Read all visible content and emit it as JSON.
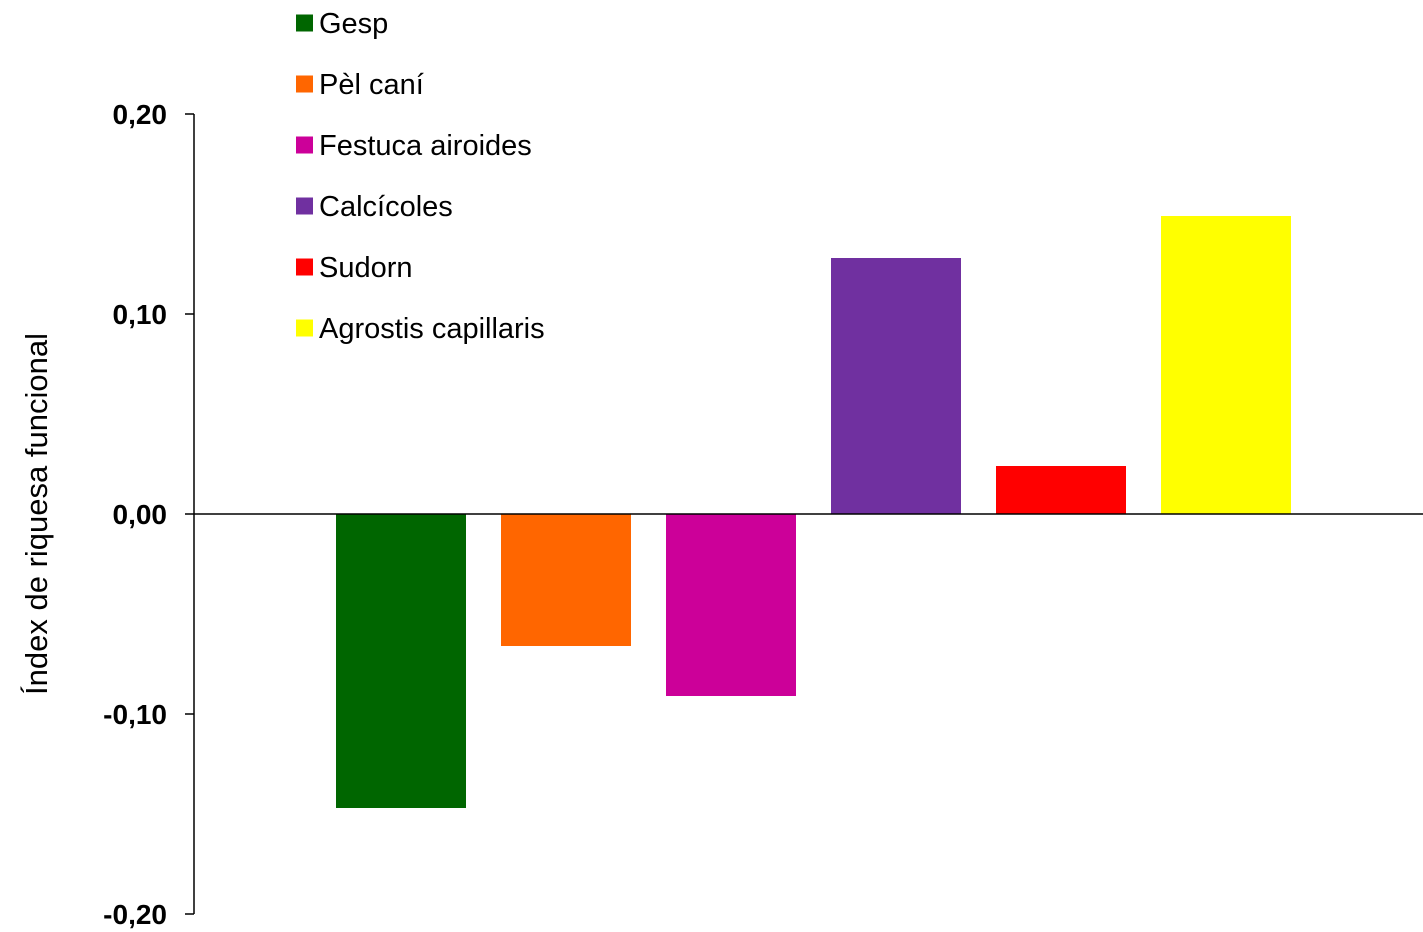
{
  "chart_data": {
    "type": "bar",
    "title": "",
    "xlabel": "",
    "ylabel": "Índex de riquesa funcional",
    "ylim": [
      -0.2,
      0.2
    ],
    "yticks": [
      0.2,
      0.1,
      0.0,
      -0.1,
      -0.2
    ],
    "ytick_labels": [
      "0,20",
      "0,10",
      "0,00",
      "-0,10",
      "-0,20"
    ],
    "grid": false,
    "legend_position": "top-left",
    "series": [
      {
        "name": "Gesp",
        "value": -0.147,
        "color": "#006600"
      },
      {
        "name": "Pèl caní",
        "value": -0.066,
        "color": "#ff6600"
      },
      {
        "name": "Festuca airoides",
        "value": -0.091,
        "color": "#cc0099"
      },
      {
        "name": "Calcícoles",
        "value": 0.128,
        "color": "#7030a0"
      },
      {
        "name": "Sudorn",
        "value": 0.024,
        "color": "#ff0000"
      },
      {
        "name": "Agrostis capillaris",
        "value": 0.149,
        "color": "#ffff00"
      }
    ]
  }
}
